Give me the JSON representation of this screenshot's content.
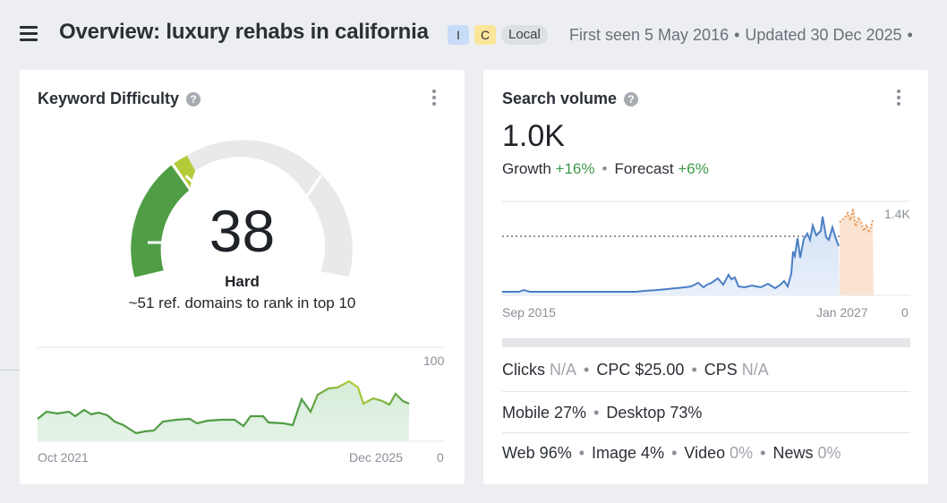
{
  "header": {
    "title": "Overview: luxury rehabs in california",
    "intents": [
      {
        "label": "I",
        "color": "#c8dcf7"
      },
      {
        "label": "C",
        "color": "#fbe59a"
      }
    ],
    "location_badge": "Local",
    "first_seen": "First seen 5 May 2016",
    "updated": "Updated 30 Dec 2025",
    "separator": "•"
  },
  "keyword_difficulty": {
    "title": "Keyword Difficulty",
    "help": "?",
    "score": "38",
    "level": "Hard",
    "description": "~51 ref. domains to rank in top 10",
    "colors": {
      "fill_dark": "#3a9a52",
      "fill_light": "#b4cc3a",
      "track": "#e8e9ea"
    },
    "chart": {
      "x_start": "Oct 2021",
      "x_end": "Dec 2025",
      "y_max": "100",
      "y_min": "0"
    }
  },
  "search_volume": {
    "title": "Search volume",
    "help": "?",
    "value": "1.0K",
    "growth_label": "Growth",
    "growth_value": "+16%",
    "forecast_label": "Forecast",
    "forecast_value": "+6%",
    "chart": {
      "x_start": "Sep 2015",
      "x_end": "Jan 2027",
      "y_max": "1.4K",
      "y_min": "0",
      "colors": {
        "history": "#4a7fc4",
        "forecast": "#e89a5a"
      }
    },
    "clicks_label": "Clicks",
    "clicks_value": "N/A",
    "cpc_label": "CPC",
    "cpc_value": "$25.00",
    "cps_label": "CPS",
    "cps_value": "N/A",
    "mobile": "Mobile 27%",
    "desktop": "Desktop 73%",
    "web": "Web 96%",
    "image": "Image 4%",
    "video_label": "Video",
    "video_value": "0%",
    "news_label": "News",
    "news_value": "0%",
    "separator": "•"
  }
}
